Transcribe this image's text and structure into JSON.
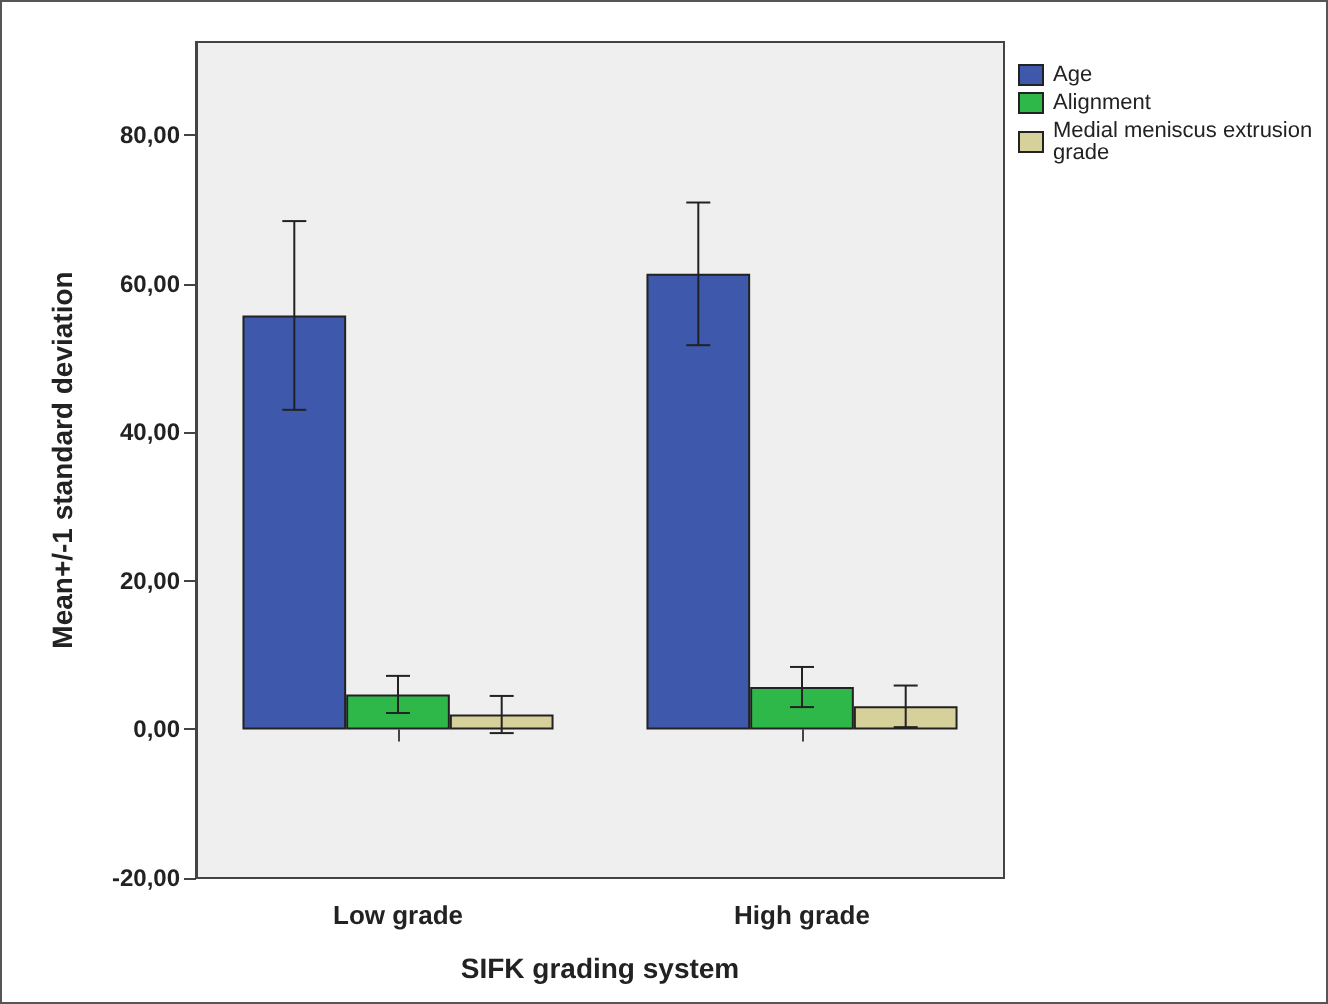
{
  "chart_data": {
    "type": "bar",
    "xlabel": "SIFK grading system",
    "ylabel": "Mean+/-1 standard deviation",
    "categories": [
      "Low grade",
      "High grade"
    ],
    "series": [
      {
        "name": "Age",
        "color": "#3e58ab",
        "values": [
          55.7,
          61.3
        ],
        "errors": [
          12.7,
          9.6
        ]
      },
      {
        "name": "Alignment",
        "color": "#2eb84a",
        "values": [
          4.7,
          5.7
        ],
        "errors": [
          2.5,
          2.7
        ]
      },
      {
        "name": "Medial meniscus extrusion grade",
        "color": "#d6d09b",
        "values": [
          2.0,
          3.1
        ],
        "errors": [
          2.5,
          2.8
        ]
      }
    ],
    "ylim": [
      -20,
      92.5
    ],
    "yticks": [
      {
        "value": -20,
        "label": "-20,00"
      },
      {
        "value": 0,
        "label": "0,00"
      },
      {
        "value": 20,
        "label": "20,00"
      },
      {
        "value": 40,
        "label": "40,00"
      },
      {
        "value": 60,
        "label": "60,00"
      },
      {
        "value": 80,
        "label": "80,00"
      }
    ],
    "grid": false,
    "legend": "top right"
  }
}
